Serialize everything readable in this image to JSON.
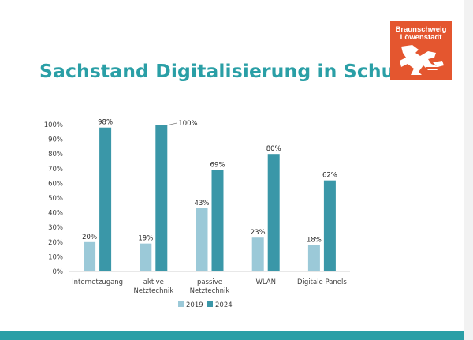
{
  "slide": {
    "title": "Sachstand Digitalisierung in Schulen",
    "logo": {
      "line1": "Braunschweig",
      "line2": "Löwenstadt"
    }
  },
  "colors": {
    "accent": "#2a9fa6",
    "series_2019": "#9bc9d8",
    "series_2024": "#3a97a8",
    "logo_bg": "#e4562f"
  },
  "chart_data": {
    "type": "bar",
    "categories": [
      [
        "Internetzugang"
      ],
      [
        "aktive",
        "Netztechnik"
      ],
      [
        "passive",
        "Netztechnik"
      ],
      [
        "WLAN"
      ],
      [
        "Digitale Panels"
      ]
    ],
    "series": [
      {
        "name": "2019",
        "values": [
          20,
          19,
          43,
          23,
          18
        ],
        "labels": [
          "20%",
          "19%",
          "43%",
          "23%",
          "18%"
        ]
      },
      {
        "name": "2024",
        "values": [
          98,
          100,
          69,
          80,
          62
        ],
        "labels": [
          "98%",
          "100%",
          "69%",
          "80%",
          "62%"
        ]
      }
    ],
    "y_ticks": [
      "0%",
      "10%",
      "20%",
      "30%",
      "40%",
      "50%",
      "60%",
      "70%",
      "80%",
      "90%",
      "100%"
    ],
    "ylim": [
      0,
      100
    ],
    "grid": false,
    "legend": "bottom-center"
  }
}
